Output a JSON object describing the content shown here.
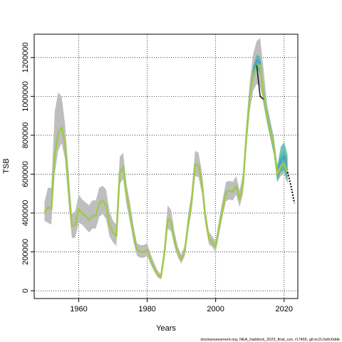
{
  "chart_data": {
    "type": "line",
    "xlabel": "Years",
    "ylabel": "TSB",
    "xlim": [
      1947,
      2024
    ],
    "ylim": [
      -40000,
      1320000
    ],
    "xticks": [
      1960,
      1980,
      2000,
      2020
    ],
    "yticks": [
      0,
      200000,
      400000,
      600000,
      800000,
      1000000,
      1200000
    ],
    "grid": true,
    "footer": "stockassessment.org, NEA_haddock_2023_final_run, r17465, git:ec2c2a0c6dde",
    "colors": {
      "band": "#bebebe",
      "retro_band": "#3cb4a0",
      "retro_line": "#4a8fcf",
      "main_line": "#a0c850",
      "forecast": "#000000"
    },
    "series": [
      {
        "x": [
          1950,
          1951,
          1952,
          1953,
          1954,
          1955,
          1956,
          1957,
          1958,
          1959,
          1960,
          1961,
          1962,
          1963,
          1964,
          1965,
          1966,
          1967,
          1968,
          1969,
          1970,
          1971,
          1972,
          1973,
          1974,
          1975,
          1976,
          1977,
          1978,
          1979,
          1980,
          1981,
          1982,
          1983,
          1984,
          1985,
          1986,
          1987,
          1988,
          1989,
          1990,
          1991,
          1992,
          1993,
          1994,
          1995,
          1996,
          1997,
          1998,
          1999,
          2000,
          2001,
          2002,
          2003,
          2004,
          2005,
          2006,
          2007,
          2008,
          2009,
          2010,
          2011,
          2012,
          2013,
          2014,
          2015,
          2016,
          2017,
          2018,
          2019,
          2020,
          2021
        ],
        "values": [
          400000,
          430000,
          420000,
          700000,
          810000,
          840000,
          760000,
          530000,
          330000,
          340000,
          420000,
          400000,
          385000,
          365000,
          385000,
          385000,
          450000,
          465000,
          440000,
          340000,
          300000,
          280000,
          610000,
          640000,
          490000,
          400000,
          290000,
          210000,
          200000,
          200000,
          210000,
          160000,
          120000,
          85000,
          70000,
          190000,
          370000,
          355000,
          260000,
          195000,
          160000,
          205000,
          350000,
          460000,
          650000,
          645000,
          550000,
          380000,
          270000,
          250000,
          225000,
          325000,
          420000,
          505000,
          515000,
          510000,
          540000,
          470000,
          550000,
          800000,
          1000000,
          1110000,
          1155000,
          1160000,
          1010000,
          900000,
          820000,
          740000,
          600000,
          640000,
          655000,
          610000
        ],
        "lower": [
          360000,
          350000,
          340000,
          600000,
          720000,
          760000,
          680000,
          460000,
          270000,
          275000,
          350000,
          340000,
          320000,
          300000,
          320000,
          320000,
          380000,
          395000,
          370000,
          280000,
          250000,
          230000,
          550000,
          575000,
          440000,
          350000,
          250000,
          180000,
          170000,
          170000,
          180000,
          135000,
          100000,
          70000,
          58000,
          160000,
          320000,
          305000,
          225000,
          170000,
          140000,
          180000,
          310000,
          410000,
          590000,
          585000,
          500000,
          340000,
          240000,
          225000,
          200000,
          290000,
          380000,
          460000,
          470000,
          465000,
          495000,
          430000,
          500000,
          740000,
          930000,
          1030000,
          1065000,
          1050000,
          960000,
          860000,
          780000,
          700000,
          560000,
          590000,
          600000,
          550000
        ],
        "upper": [
          455000,
          530000,
          530000,
          920000,
          1020000,
          1000000,
          860000,
          620000,
          395000,
          410000,
          495000,
          470000,
          455000,
          440000,
          465000,
          465000,
          530000,
          540000,
          520000,
          410000,
          360000,
          340000,
          690000,
          710000,
          545000,
          455000,
          335000,
          245000,
          235000,
          235000,
          245000,
          190000,
          145000,
          105000,
          85000,
          225000,
          440000,
          415000,
          300000,
          225000,
          185000,
          235000,
          395000,
          510000,
          720000,
          710000,
          610000,
          420000,
          305000,
          280000,
          255000,
          365000,
          465000,
          560000,
          565000,
          560000,
          590000,
          515000,
          605000,
          870000,
          1080000,
          1220000,
          1285000,
          1300000,
          1140000,
          960000,
          875000,
          790000,
          650000,
          700000,
          720000,
          680000
        ]
      },
      {
        "name": "",
        "x": [
          2010,
          2011,
          2012,
          2013,
          2014,
          2015,
          2016,
          2017,
          2018,
          2019,
          2020,
          2021
        ],
        "values": [
          1005000,
          1125000,
          1185000,
          1175000,
          1005000,
          900000,
          815000,
          730000,
          595000,
          670000,
          690000,
          620000
        ],
        "lower": [
          975000,
          1085000,
          1145000,
          1120000,
          965000,
          870000,
          790000,
          700000,
          560000,
          610000,
          620000,
          560000
        ],
        "upper": [
          1035000,
          1155000,
          1215000,
          1205000,
          1045000,
          935000,
          850000,
          770000,
          640000,
          740000,
          765000,
          700000
        ]
      },
      {
        "name": "",
        "x": [
          2012,
          2013,
          2014
        ],
        "values": [
          1160000,
          1000000,
          985000
        ]
      },
      {
        "name": "",
        "x": [
          2021,
          2022,
          2023
        ],
        "values": [
          610000,
          540000,
          450000
        ]
      }
    ]
  }
}
